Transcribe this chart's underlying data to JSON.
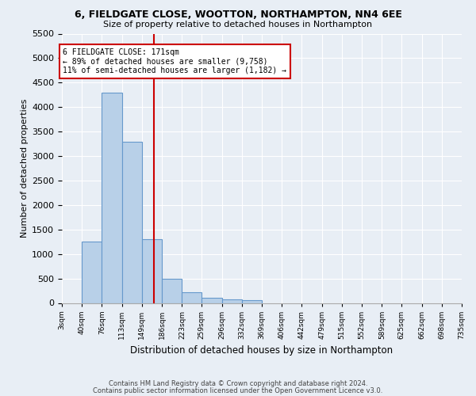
{
  "title1": "6, FIELDGATE CLOSE, WOOTTON, NORTHAMPTON, NN4 6EE",
  "title2": "Size of property relative to detached houses in Northampton",
  "xlabel": "Distribution of detached houses by size in Northampton",
  "ylabel": "Number of detached properties",
  "footnote1": "Contains HM Land Registry data © Crown copyright and database right 2024.",
  "footnote2": "Contains public sector information licensed under the Open Government Licence v3.0.",
  "annotation_line1": "6 FIELDGATE CLOSE: 171sqm",
  "annotation_line2": "← 89% of detached houses are smaller (9,758)",
  "annotation_line3": "11% of semi-detached houses are larger (1,182) →",
  "property_size": 171,
  "bin_edges": [
    3,
    40,
    76,
    113,
    149,
    186,
    223,
    259,
    296,
    332,
    369,
    406,
    442,
    479,
    515,
    552,
    589,
    625,
    662,
    698,
    735
  ],
  "bar_heights": [
    0,
    1260,
    4300,
    3300,
    1300,
    490,
    215,
    100,
    80,
    60,
    0,
    0,
    0,
    0,
    0,
    0,
    0,
    0,
    0,
    0
  ],
  "bar_color": "#b8d0e8",
  "bar_edge_color": "#6699cc",
  "vline_color": "#cc0000",
  "vline_x": 171,
  "annotation_box_color": "#cc0000",
  "background_color": "#e8eef5",
  "ylim": [
    0,
    5500
  ],
  "yticks": [
    0,
    500,
    1000,
    1500,
    2000,
    2500,
    3000,
    3500,
    4000,
    4500,
    5000,
    5500
  ]
}
